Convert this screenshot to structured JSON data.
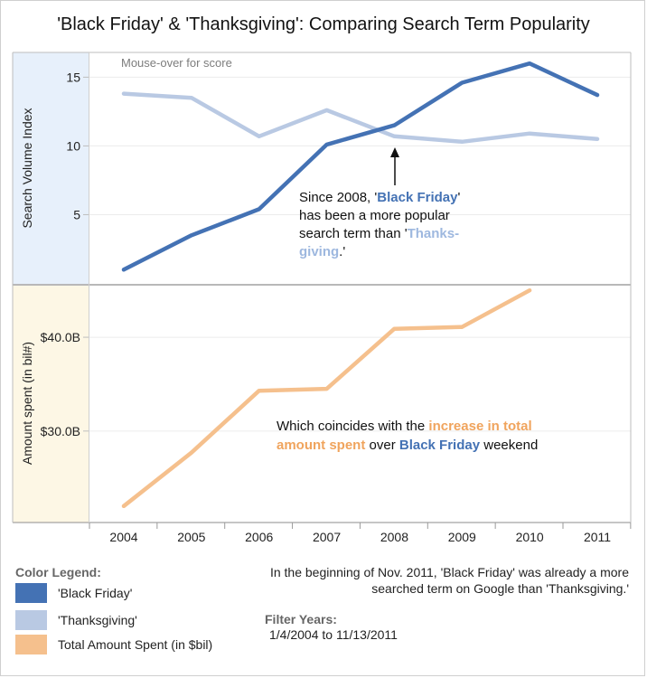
{
  "title": "'Black Friday' & 'Thanksgiving': Comparing Search Term Popularity",
  "colors": {
    "black_friday": "#4472b4",
    "thanksgiving": "#b9c9e3",
    "amount_spent": "#f5c08d",
    "highlight_orange": "#f0a45d"
  },
  "chart_data": [
    {
      "type": "line",
      "ylabel": "Search Volume Index",
      "x": [
        2004,
        2005,
        2006,
        2007,
        2008,
        2009,
        2010,
        2011
      ],
      "y_ticks": [
        5,
        10,
        15
      ],
      "ylim": [
        -0.1,
        16.8
      ],
      "hint": "Mouse-over for score",
      "series": [
        {
          "name": "'Black Friday'",
          "values": [
            1.0,
            3.5,
            5.4,
            10.1,
            11.5,
            14.6,
            16.0,
            13.7
          ]
        },
        {
          "name": "'Thanksgiving'",
          "values": [
            13.8,
            13.5,
            10.7,
            12.6,
            10.7,
            10.3,
            10.9,
            10.5
          ]
        }
      ],
      "annotation": {
        "line1_prefix": "Since 2008, '",
        "line1_highlight": "Black Friday",
        "line1_suffix": "'",
        "line2": "has been a more popular",
        "line3_prefix": "search term than '",
        "line3_highlight": "Thanks-",
        "line4_highlight": "giving",
        "line4_suffix": ".'"
      }
    },
    {
      "type": "line",
      "ylabel": "Amount spent (in bil#)",
      "x": [
        2004,
        2005,
        2006,
        2007,
        2008,
        2009,
        2010,
        2011
      ],
      "y_ticks": [
        30,
        40
      ],
      "y_tick_labels": [
        "$30.0B",
        "$40.0B"
      ],
      "ylim": [
        20.25,
        45.5
      ],
      "series": [
        {
          "name": "Total Amount Spent (in $bil)",
          "values": [
            22.0,
            27.7,
            34.3,
            34.5,
            40.9,
            41.1,
            45.0,
            null
          ]
        }
      ],
      "annotation": {
        "line1_prefix": "Which coincides with the ",
        "line1_highlight": "increase in total",
        "line2_highlight": "amount spent",
        "line2_mid": " over ",
        "line2_highlight2": "Black Friday",
        "line2_suffix": " weekend"
      }
    }
  ],
  "legend": {
    "title": "Color Legend:",
    "items": [
      "'Black Friday'",
      "'Thanksgiving'",
      "Total Amount Spent (in $bil)"
    ]
  },
  "note": "In the beginning of Nov. 2011, 'Black Friday' was already a more searched term on Google than 'Thanksgiving.'",
  "filter": {
    "title": "Filter Years:",
    "range": "1/4/2004 to 11/13/2011"
  }
}
